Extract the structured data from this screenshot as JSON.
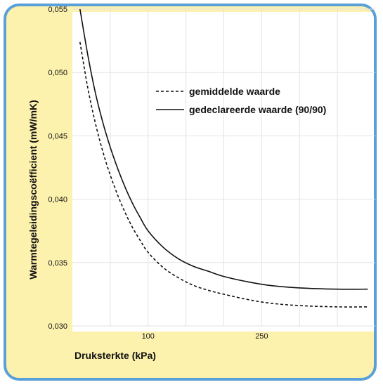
{
  "chart_data": {
    "type": "line",
    "title": "",
    "xlabel": "Druksterkte (kPa)",
    "ylabel": "Warmtegeleidingscoëfficient (mW/mK)",
    "ylim": [
      0.03,
      0.055
    ],
    "yticks": [
      "0,030",
      "0,035",
      "0,040",
      "0,045",
      "0,050",
      "0,055"
    ],
    "yticks_values": [
      0.03,
      0.035,
      0.04,
      0.045,
      0.05,
      0.055
    ],
    "xlim": [
      0,
      400
    ],
    "xticks": [
      "100",
      "250"
    ],
    "xticks_values": [
      100,
      250
    ],
    "grid": true,
    "legend_position": "top-right",
    "series": [
      {
        "name": "gemiddelde waarde",
        "style": "dashed",
        "x": [
          10,
          20,
          30,
          40,
          50,
          60,
          70,
          80,
          90,
          100,
          120,
          140,
          160,
          180,
          200,
          230,
          260,
          300,
          350,
          390
        ],
        "y": [
          0.0524,
          0.0489,
          0.0461,
          0.0438,
          0.0419,
          0.0403,
          0.0389,
          0.0377,
          0.0367,
          0.0358,
          0.0346,
          0.0338,
          0.0332,
          0.0328,
          0.0325,
          0.0321,
          0.0318,
          0.0316,
          0.0315,
          0.0315
        ]
      },
      {
        "name": "gedeclareerde waarde (90/90)",
        "style": "solid",
        "x": [
          10,
          20,
          30,
          40,
          50,
          60,
          70,
          80,
          90,
          100,
          120,
          140,
          160,
          180,
          200,
          230,
          260,
          300,
          350,
          390
        ],
        "y": [
          0.055,
          0.0515,
          0.0485,
          0.0461,
          0.0441,
          0.0424,
          0.0409,
          0.0396,
          0.0385,
          0.0375,
          0.0362,
          0.0353,
          0.0347,
          0.0343,
          0.0339,
          0.0335,
          0.0332,
          0.033,
          0.0329,
          0.0329
        ]
      }
    ],
    "colors": {
      "frame": "#5aa0d8",
      "background": "#fcf2ae",
      "plot": "#ffffff",
      "grid": "#e3e3e3",
      "line": "#111111"
    }
  }
}
